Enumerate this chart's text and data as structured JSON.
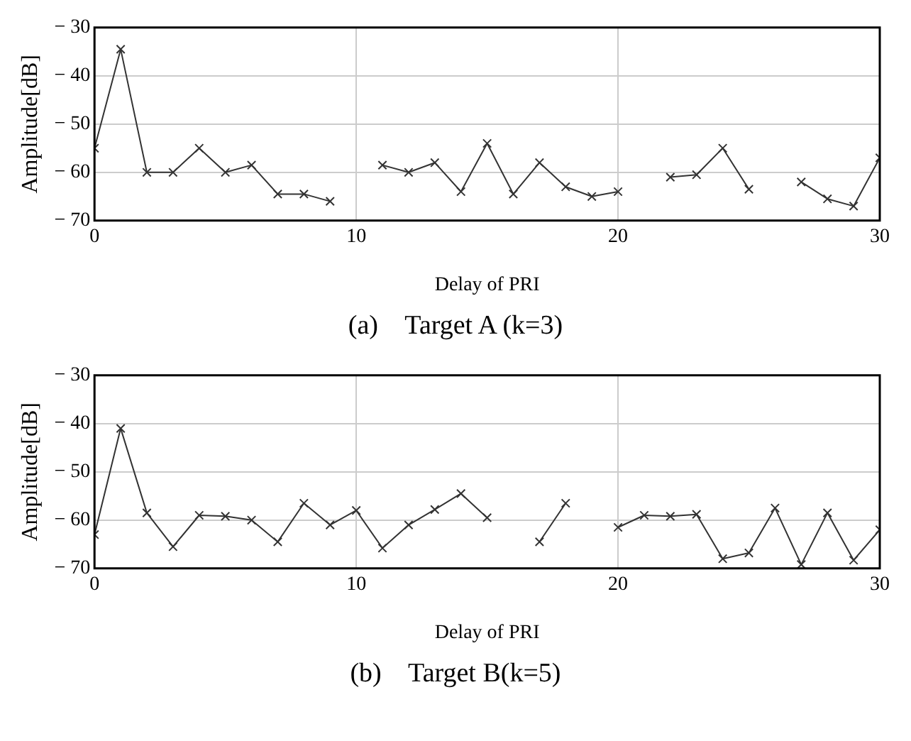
{
  "chart_data": [
    {
      "type": "line",
      "xlabel": "Delay of PRI",
      "ylabel": "Amplitude[dB]",
      "annotations": [
        "(a)    Target A (k=3)"
      ],
      "x": [
        0,
        1,
        2,
        3,
        4,
        5,
        6,
        7,
        8,
        9,
        10,
        11,
        12,
        13,
        14,
        15,
        16,
        17,
        18,
        19,
        20,
        21,
        22,
        23,
        24,
        25,
        26,
        27,
        28,
        29,
        30
      ],
      "xlim": [
        0,
        30
      ],
      "xticks": [
        0,
        10,
        20,
        30
      ],
      "ylim": [
        -70,
        -30
      ],
      "yticks": [
        {
          "value": -70,
          "label": "− 70"
        },
        {
          "value": -60,
          "label": "− 60"
        },
        {
          "value": -50,
          "label": "− 50"
        },
        {
          "value": -40,
          "label": "− 40"
        },
        {
          "value": -30,
          "label": "− 30"
        }
      ],
      "grid": true,
      "legend": false,
      "marker": "cross",
      "line_style": "solid",
      "series": [
        {
          "color": "#333333",
          "values": [
            -55,
            -34.5,
            -60,
            -60,
            -55,
            -60,
            -58.5,
            -64.5,
            -64.5,
            -66,
            null,
            -58.5,
            -60,
            -58,
            -64,
            -54,
            -64.5,
            -58,
            -63,
            -65,
            -64,
            null,
            -61,
            -60.5,
            -55,
            -63.5,
            null,
            -62,
            -65.5,
            -67,
            -57
          ]
        }
      ]
    },
    {
      "type": "line",
      "xlabel": "Delay of PRI",
      "ylabel": "Amplitude[dB]",
      "annotations": [
        "(b)    Target B(k=5)"
      ],
      "x": [
        0,
        1,
        2,
        3,
        4,
        5,
        6,
        7,
        8,
        9,
        10,
        11,
        12,
        13,
        14,
        15,
        16,
        17,
        18,
        19,
        20,
        21,
        22,
        23,
        24,
        25,
        26,
        27,
        28,
        29,
        30
      ],
      "xlim": [
        0,
        30
      ],
      "xticks": [
        0,
        10,
        20,
        30
      ],
      "ylim": [
        -70,
        -30
      ],
      "yticks": [
        {
          "value": -70,
          "label": "− 70"
        },
        {
          "value": -60,
          "label": "− 60"
        },
        {
          "value": -50,
          "label": "− 50"
        },
        {
          "value": -40,
          "label": "− 40"
        },
        {
          "value": -30,
          "label": "− 30"
        }
      ],
      "grid": true,
      "legend": false,
      "marker": "cross",
      "line_style": "solid",
      "series": [
        {
          "color": "#333333",
          "values": [
            -63,
            -41,
            -58.5,
            -65.5,
            -59,
            -59.2,
            -60,
            -64.5,
            -56.5,
            -61,
            -58,
            -65.8,
            -61,
            -57.8,
            -54.5,
            -59.5,
            null,
            -64.5,
            -56.5,
            null,
            -61.5,
            -59,
            -59.2,
            -58.8,
            -68,
            -66.8,
            -57.5,
            -69.2,
            -58.5,
            -68.3,
            -62
          ]
        }
      ]
    }
  ]
}
